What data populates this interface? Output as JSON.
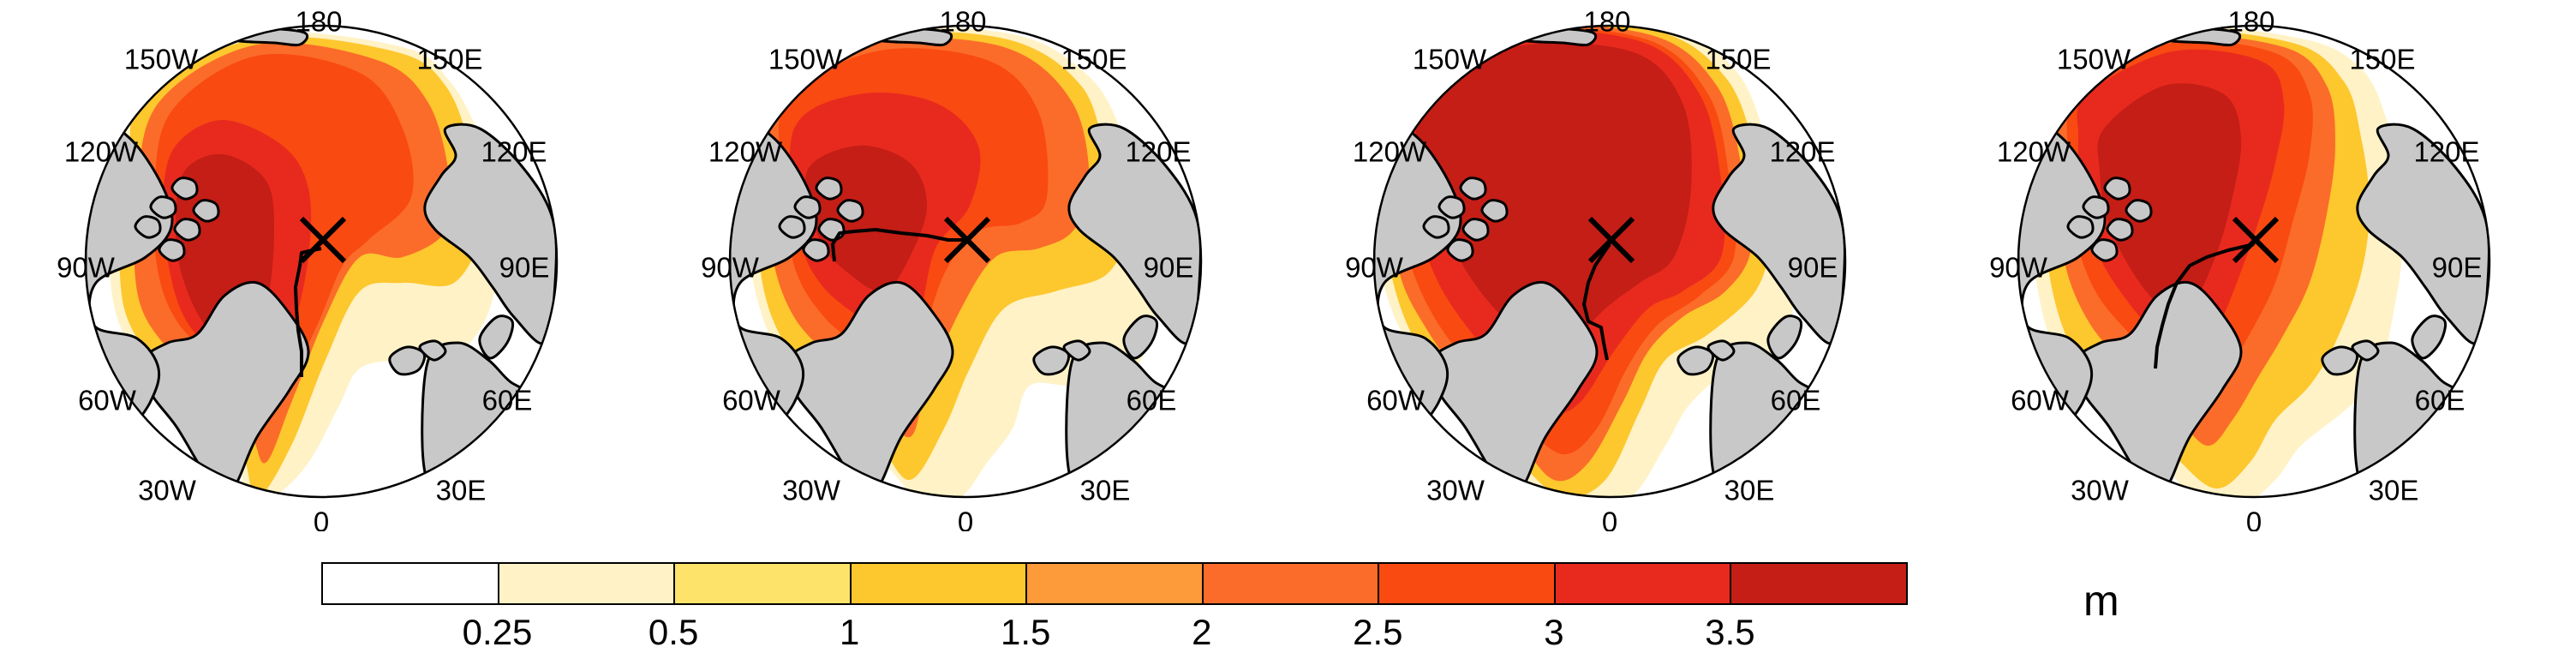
{
  "colors": {
    "ocean": "#ffffff",
    "land": "#c8c8c8",
    "coast": "#000000",
    "levels": [
      "#ffffff",
      "#fff2c6",
      "#fde36a",
      "#fdc72e",
      "#fd9a3a",
      "#fb6c2a",
      "#f94a12",
      "#e82a1e",
      "#c41e16"
    ]
  },
  "map": {
    "projection": "north-polar-stereographic",
    "longitude_labels": [
      "180",
      "150E",
      "120E",
      "90E",
      "60E",
      "30E",
      "0",
      "30W",
      "60W",
      "90W",
      "120W",
      "150W"
    ],
    "marker": "x-mark",
    "panels": [
      {
        "id": "panel-1",
        "track": true
      },
      {
        "id": "panel-2",
        "track": true
      },
      {
        "id": "panel-3",
        "track": true
      },
      {
        "id": "panel-4",
        "track": true
      }
    ]
  },
  "colorbar": {
    "ticks": [
      "0.25",
      "0.5",
      "1",
      "1.5",
      "2",
      "2.5",
      "3",
      "3.5"
    ],
    "unit": "m"
  }
}
